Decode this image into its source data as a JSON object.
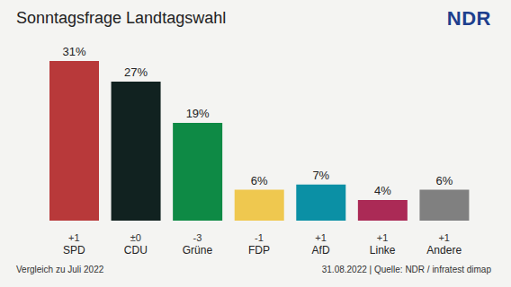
{
  "chart_data": {
    "type": "bar",
    "title": "Sonntagsfrage Landtagswahl",
    "logo": "NDR",
    "categories": [
      "SPD",
      "CDU",
      "Grüne",
      "FDP",
      "AfD",
      "Linke",
      "Andere"
    ],
    "values": [
      31,
      27,
      19,
      6,
      7,
      4,
      6
    ],
    "value_labels": [
      "31%",
      "27%",
      "19%",
      "6%",
      "7%",
      "4%",
      "6%"
    ],
    "changes": [
      1,
      0,
      -3,
      -1,
      1,
      1,
      1
    ],
    "change_labels": [
      "+1",
      "±0",
      "-3",
      "-1",
      "+1",
      "+1",
      "+1"
    ],
    "colors": [
      "#b8393a",
      "#112220",
      "#0e8a45",
      "#efc84f",
      "#0b90a5",
      "#ab2a56",
      "#808080"
    ],
    "ylim": [
      0,
      31
    ],
    "tick_labels": false,
    "data_labels": true,
    "grid": false,
    "note": "Vergleich zu Juli 2022",
    "source": "31.08.2022 | Quelle: NDR / infratest dimap"
  }
}
